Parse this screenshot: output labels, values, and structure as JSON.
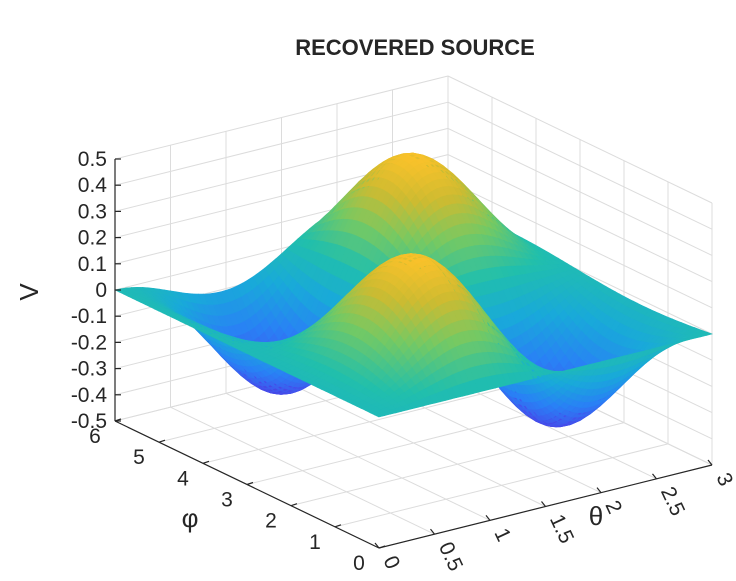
{
  "chart_data": {
    "type": "surface",
    "title": "RECOVERED SOURCE",
    "xlabel": "θ",
    "ylabel": "φ",
    "zlabel": "V",
    "xlim": [
      0,
      3
    ],
    "ylim": [
      0,
      6
    ],
    "zlim": [
      -0.5,
      0.5
    ],
    "x_ticks": [
      "0",
      "0.5",
      "1",
      "1.5",
      "2",
      "2.5",
      "3"
    ],
    "y_ticks": [
      "0",
      "1",
      "2",
      "3",
      "4",
      "5",
      "6"
    ],
    "z_ticks": [
      "0.5",
      "0.4",
      "0.3",
      "0.2",
      "0.1",
      "0",
      "-0.1",
      "-0.2",
      "-0.3",
      "-0.4",
      "-0.5"
    ],
    "grid": true,
    "colormap": "parula",
    "function": "V = 0.5 · sin(θ) · sin(2θ) · sin(φ)",
    "colors": {
      "axis": "#262626",
      "grid": "#dcdcdc"
    }
  }
}
